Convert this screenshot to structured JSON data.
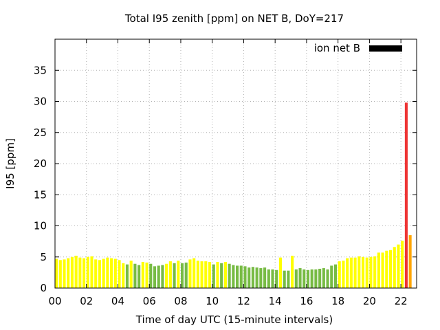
{
  "chart_data": {
    "type": "bar",
    "title": "Total I95 zenith [ppm] on NET B, DoY=217",
    "xlabel": "Time of day UTC (15-minute intervals)",
    "ylabel": "I95 [ppm]",
    "xlim": [
      0,
      23
    ],
    "ylim": [
      0,
      40
    ],
    "x_ticks": [
      {
        "v": 0,
        "label": "00"
      },
      {
        "v": 2,
        "label": "02"
      },
      {
        "v": 4,
        "label": "04"
      },
      {
        "v": 6,
        "label": "06"
      },
      {
        "v": 8,
        "label": "08"
      },
      {
        "v": 10,
        "label": "10"
      },
      {
        "v": 12,
        "label": "12"
      },
      {
        "v": 14,
        "label": "14"
      },
      {
        "v": 16,
        "label": "16"
      },
      {
        "v": 18,
        "label": "18"
      },
      {
        "v": 20,
        "label": "20"
      },
      {
        "v": 22,
        "label": "22"
      }
    ],
    "y_ticks": [
      {
        "v": 0,
        "label": "0"
      },
      {
        "v": 5,
        "label": "5"
      },
      {
        "v": 10,
        "label": "10"
      },
      {
        "v": 15,
        "label": "15"
      },
      {
        "v": 20,
        "label": "20"
      },
      {
        "v": 25,
        "label": "25"
      },
      {
        "v": 30,
        "label": "30"
      },
      {
        "v": 35,
        "label": "35"
      }
    ],
    "grid": true,
    "legend": {
      "label": "ion net B",
      "color": "#000000",
      "position": "top-right"
    },
    "colors": {
      "yellow": "#ffff00",
      "green": "#77bb44",
      "orange": "#ffa500",
      "red": "#ee3333"
    },
    "bar_width_hours": 0.18,
    "series": [
      {
        "x": [
          0.0,
          0.25,
          0.5,
          0.75,
          1.0,
          1.25,
          1.5,
          1.75,
          2.0,
          2.25,
          2.5,
          2.75,
          3.0,
          3.25,
          3.5,
          3.75,
          4.0,
          4.25,
          4.5,
          4.75,
          5.0,
          5.25,
          5.5,
          5.75,
          6.0,
          6.25,
          6.5,
          6.75,
          7.0,
          7.25,
          7.5,
          7.75,
          8.0,
          8.25,
          8.5,
          8.75,
          9.0,
          9.25,
          9.5,
          9.75,
          10.0,
          10.25,
          10.5,
          10.75,
          11.0,
          11.25,
          11.5,
          11.75,
          12.0,
          12.25,
          12.5,
          12.75,
          13.0,
          13.25,
          13.5,
          13.75,
          14.0,
          14.25,
          14.5,
          14.75,
          15.0,
          15.25,
          15.5,
          15.75,
          16.0,
          16.25,
          16.5,
          16.75,
          17.0,
          17.25,
          17.5,
          17.75,
          18.0,
          18.25,
          18.5,
          18.75,
          19.0,
          19.25,
          19.5,
          19.75,
          20.0,
          20.25,
          20.5,
          20.75,
          21.0,
          21.25,
          21.5,
          21.75,
          22.0,
          22.25,
          22.5,
          22.75
        ],
        "values": [
          4.7,
          4.5,
          4.6,
          4.8,
          5.0,
          5.2,
          4.9,
          4.8,
          5.0,
          5.1,
          4.6,
          4.5,
          4.7,
          4.9,
          4.8,
          4.7,
          4.5,
          4.0,
          3.8,
          4.4,
          3.9,
          3.7,
          4.2,
          4.1,
          3.9,
          3.5,
          3.6,
          3.7,
          3.9,
          4.3,
          4.0,
          4.4,
          4.0,
          4.1,
          4.6,
          4.8,
          4.4,
          4.3,
          4.3,
          4.2,
          3.8,
          4.2,
          4.0,
          4.2,
          3.9,
          3.7,
          3.6,
          3.6,
          3.5,
          3.3,
          3.4,
          3.3,
          3.2,
          3.3,
          3.0,
          3.0,
          2.9,
          4.9,
          2.8,
          2.8,
          5.2,
          3.0,
          3.2,
          3.0,
          2.9,
          3.0,
          3.0,
          3.1,
          3.2,
          3.0,
          3.6,
          3.8,
          4.3,
          4.4,
          4.8,
          4.9,
          4.9,
          5.1,
          5.0,
          4.9,
          5.0,
          5.1,
          5.7,
          5.7,
          6.0,
          6.1,
          6.6,
          7.0,
          7.6,
          29.8,
          8.5,
          0
        ],
        "colors": [
          "yellow",
          "yellow",
          "yellow",
          "yellow",
          "yellow",
          "yellow",
          "yellow",
          "yellow",
          "yellow",
          "yellow",
          "yellow",
          "yellow",
          "yellow",
          "yellow",
          "yellow",
          "yellow",
          "yellow",
          "yellow",
          "green",
          "yellow",
          "green",
          "green",
          "yellow",
          "yellow",
          "green",
          "green",
          "green",
          "green",
          "yellow",
          "yellow",
          "green",
          "yellow",
          "green",
          "green",
          "yellow",
          "yellow",
          "yellow",
          "yellow",
          "yellow",
          "yellow",
          "green",
          "yellow",
          "green",
          "yellow",
          "green",
          "green",
          "green",
          "green",
          "green",
          "green",
          "green",
          "green",
          "green",
          "green",
          "green",
          "green",
          "green",
          "yellow",
          "green",
          "green",
          "yellow",
          "green",
          "green",
          "green",
          "green",
          "green",
          "green",
          "green",
          "green",
          "green",
          "green",
          "green",
          "yellow",
          "yellow",
          "yellow",
          "yellow",
          "yellow",
          "yellow",
          "yellow",
          "yellow",
          "yellow",
          "yellow",
          "yellow",
          "yellow",
          "yellow",
          "yellow",
          "yellow",
          "yellow",
          "yellow",
          "red",
          "orange",
          "yellow"
        ]
      }
    ]
  }
}
